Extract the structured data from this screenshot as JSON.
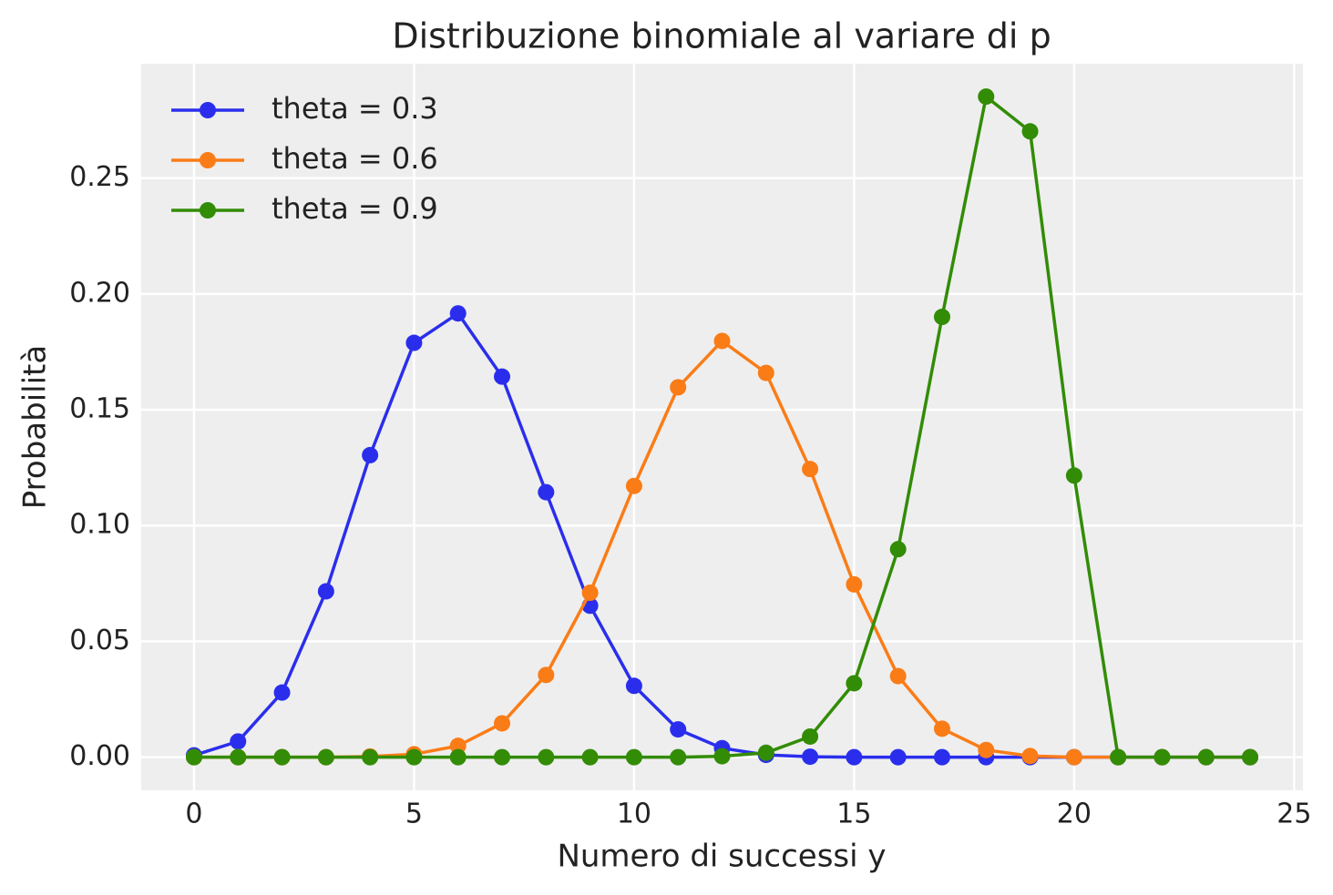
{
  "chart_data": {
    "type": "line",
    "title": "Distribuzione binomiale al variare di p",
    "xlabel": "Numero di successi y",
    "ylabel": "Probabilità",
    "x": [
      0,
      1,
      2,
      3,
      4,
      5,
      6,
      7,
      8,
      9,
      10,
      11,
      12,
      13,
      14,
      15,
      16,
      17,
      18,
      19,
      20,
      21,
      22,
      23,
      24
    ],
    "series": [
      {
        "name": "theta = 0.3",
        "color": "#2a2eec",
        "values": [
          0.0008,
          0.0068,
          0.0279,
          0.0716,
          0.1304,
          0.1789,
          0.1916,
          0.1643,
          0.1144,
          0.0654,
          0.0308,
          0.012,
          0.0039,
          0.001,
          0.0002,
          0,
          0,
          0,
          0,
          0,
          0,
          0,
          0,
          0,
          0
        ]
      },
      {
        "name": "theta = 0.6",
        "color": "#fa7c17",
        "values": [
          0,
          0,
          0,
          0,
          0.0003,
          0.0013,
          0.0049,
          0.0146,
          0.0355,
          0.071,
          0.1171,
          0.1597,
          0.1797,
          0.1659,
          0.1244,
          0.0746,
          0.035,
          0.0123,
          0.0031,
          0.0005,
          0,
          0,
          0,
          0,
          0
        ]
      },
      {
        "name": "theta = 0.9",
        "color": "#328c06",
        "values": [
          0,
          0,
          0,
          0,
          0,
          0,
          0,
          0,
          0,
          0,
          0,
          0,
          0.0004,
          0.0019,
          0.0089,
          0.0319,
          0.0898,
          0.1901,
          0.2852,
          0.2702,
          0.1216,
          0,
          0,
          0,
          0
        ]
      }
    ],
    "xlim": [
      -1.2,
      25.2
    ],
    "ylim": [
      -0.0143,
      0.2994
    ],
    "xticks": [
      0,
      5,
      10,
      15,
      20,
      25
    ],
    "yticks": [
      {
        "value": 0,
        "label": "0.00"
      },
      {
        "value": 0.05,
        "label": "0.05"
      },
      {
        "value": 0.1,
        "label": "0.10"
      },
      {
        "value": 0.15,
        "label": "0.15"
      },
      {
        "value": 0.2,
        "label": "0.20"
      },
      {
        "value": 0.25,
        "label": "0.25"
      }
    ],
    "grid": true,
    "legend": "upper left"
  }
}
